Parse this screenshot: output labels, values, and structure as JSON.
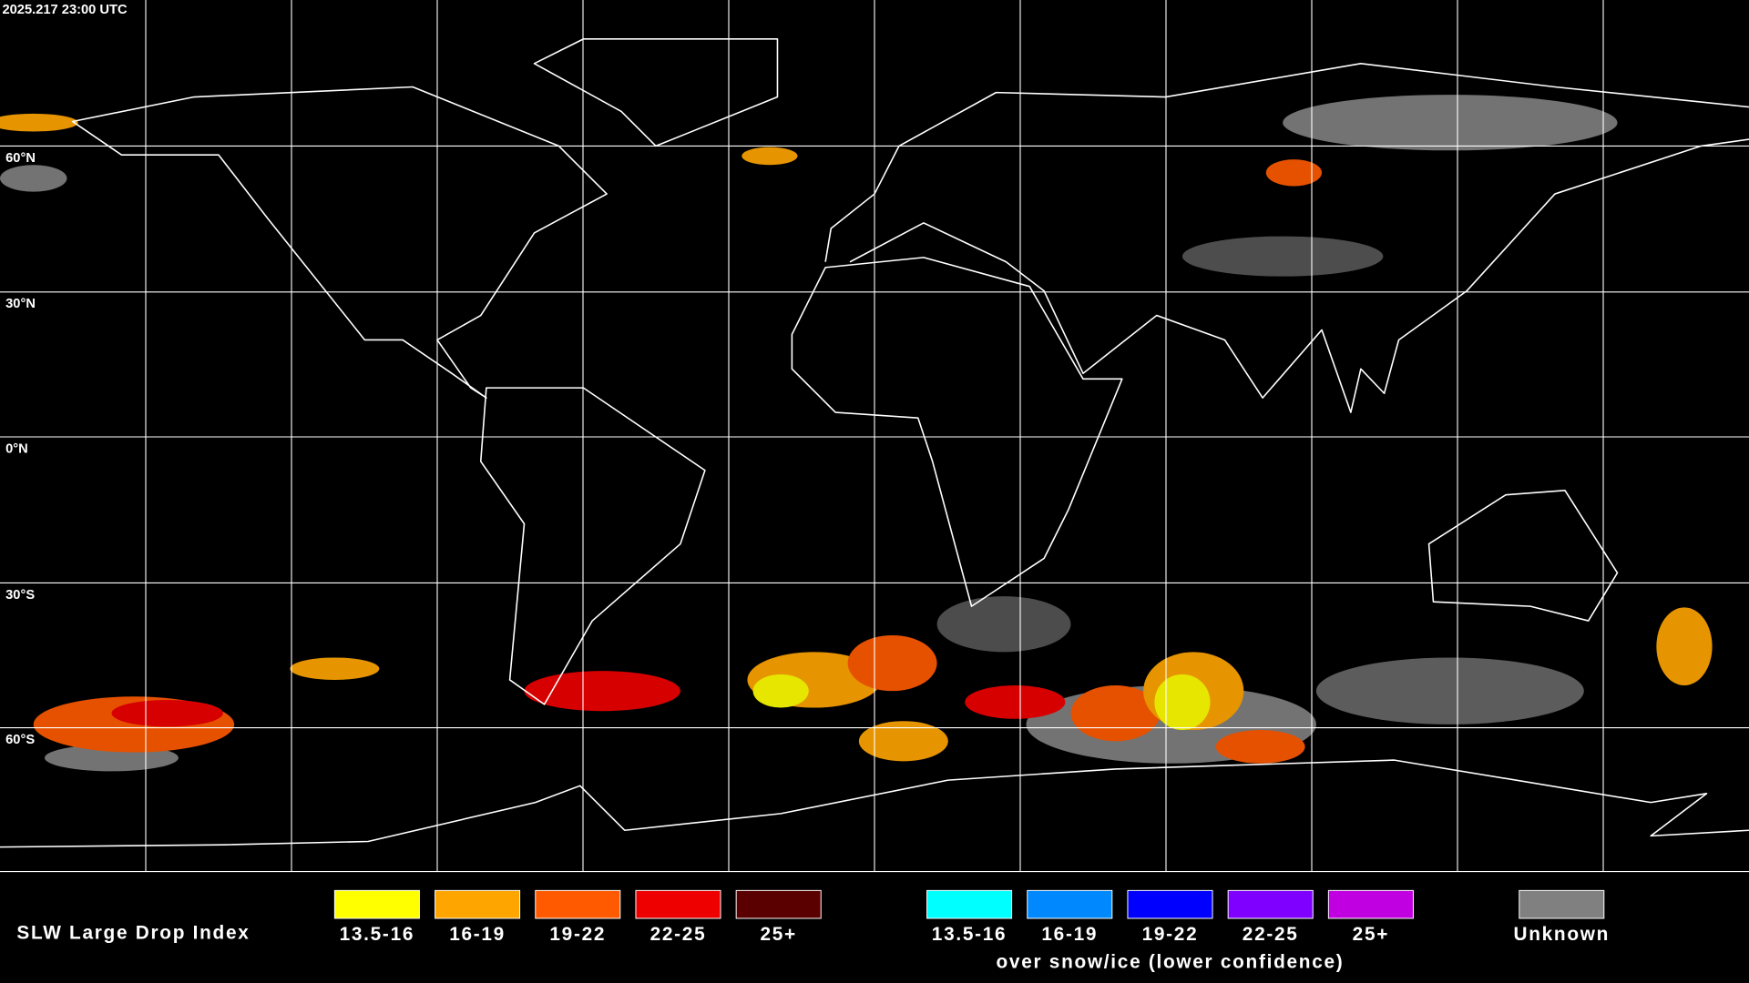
{
  "header": {
    "timestamp": "2025.217 23:00 UTC"
  },
  "map": {
    "latitude_labels": [
      "60°N",
      "30°N",
      "0°N",
      "30°S",
      "60°S"
    ]
  },
  "legend": {
    "title": "SLW Large Drop Index",
    "entries": [
      {
        "label": "13.5-16",
        "color": "#ffff00"
      },
      {
        "label": "16-19",
        "color": "#ffa500"
      },
      {
        "label": "19-22",
        "color": "#ff5a00"
      },
      {
        "label": "22-25",
        "color": "#ee0000"
      },
      {
        "label": "25+",
        "color": "#5a0000"
      }
    ],
    "snow_ice_entries": [
      {
        "label": "13.5-16",
        "color": "#00ffff"
      },
      {
        "label": "16-19",
        "color": "#0088ff"
      },
      {
        "label": "19-22",
        "color": "#0000ff"
      },
      {
        "label": "22-25",
        "color": "#8000ff"
      },
      {
        "label": "25+",
        "color": "#c000e0"
      }
    ],
    "snow_ice_caption": "over snow/ice (lower confidence)",
    "unknown": {
      "label": "Unknown",
      "color": "#808080"
    }
  }
}
